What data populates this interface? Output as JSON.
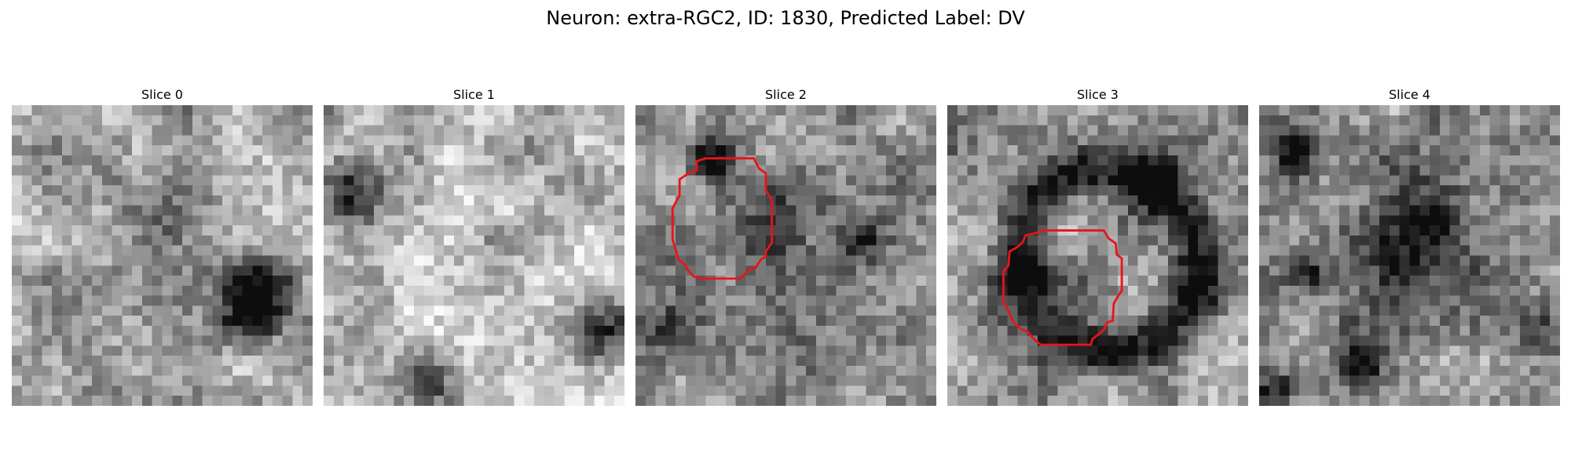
{
  "figure": {
    "title": "Neuron: extra-RGC2, ID: 1830, Predicted Label: DV"
  },
  "colors": {
    "background": "#ffffff",
    "roi_outline": "#e8141b",
    "colormap": "grayscale"
  },
  "panels": [
    {
      "title": "Slice 0",
      "has_roi": false
    },
    {
      "title": "Slice 1",
      "has_roi": false
    },
    {
      "title": "Slice 2",
      "has_roi": true
    },
    {
      "title": "Slice 3",
      "has_roi": true
    },
    {
      "title": "Slice 4",
      "has_roi": false
    }
  ]
}
